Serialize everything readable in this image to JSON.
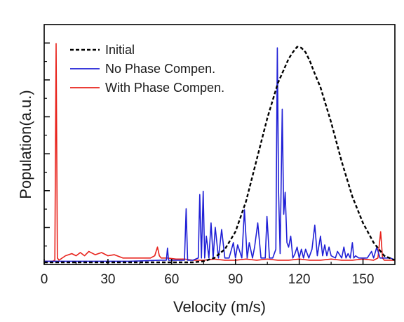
{
  "chart_data": {
    "type": "line",
    "xlabel": "Velocity (m/s)",
    "ylabel": "Population(a.u.)",
    "xlim": [
      0,
      165
    ],
    "ylim": [
      0,
      1.0
    ],
    "xticks": [
      0,
      30,
      60,
      90,
      120,
      150
    ],
    "y_tick_labels_shown": false,
    "legend_position": "top-left",
    "grid": false,
    "series": [
      {
        "name": "Initial",
        "style": "dashed",
        "color": "#000000",
        "x": [
          0,
          70,
          75,
          80,
          85,
          90,
          95,
          100,
          105,
          110,
          115,
          117,
          119,
          121,
          123,
          125,
          127,
          130,
          135,
          140,
          145,
          150,
          155,
          160,
          165
        ],
        "y": [
          0,
          0,
          0.005,
          0.02,
          0.06,
          0.14,
          0.28,
          0.47,
          0.66,
          0.82,
          0.93,
          0.96,
          0.985,
          0.98,
          0.96,
          0.92,
          0.87,
          0.8,
          0.64,
          0.46,
          0.3,
          0.18,
          0.09,
          0.03,
          0.01
        ]
      },
      {
        "name": "No Phase Compen.",
        "style": "solid",
        "color": "#1f1fd6",
        "x": [
          0,
          40,
          55,
          57.5,
          58,
          58.5,
          62,
          66,
          66.8,
          67.5,
          70,
          72.5,
          73.2,
          74,
          74.8,
          75.5,
          76.3,
          77.5,
          78.5,
          79.5,
          80.5,
          82,
          83.5,
          85,
          87,
          89,
          90,
          91,
          93,
          94.2,
          95.5,
          96.5,
          98,
          99,
          100.5,
          102,
          104,
          104.8,
          106,
          107.5,
          109,
          109.7,
          110.3,
          111,
          112,
          112.7,
          113.4,
          114.2,
          115,
          116,
          117,
          118,
          119,
          120,
          121,
          122,
          123,
          124.5,
          126,
          127.3,
          128.5,
          130,
          131,
          132,
          133,
          134,
          135,
          137,
          138,
          140,
          141,
          142,
          143,
          144,
          145,
          145.7,
          146.5,
          148,
          150,
          152,
          154,
          155,
          156.5,
          158,
          160,
          162,
          163,
          165
        ],
        "y": [
          0.005,
          0.005,
          0.01,
          0.01,
          0.065,
          0.01,
          0.01,
          0.01,
          0.245,
          0.01,
          0.01,
          0.02,
          0.31,
          0.02,
          0.325,
          0.02,
          0.12,
          0.02,
          0.18,
          0.02,
          0.16,
          0.02,
          0.15,
          0.02,
          0.02,
          0.09,
          0.02,
          0.08,
          0.02,
          0.24,
          0.02,
          0.09,
          0.02,
          0.07,
          0.18,
          0.02,
          0.02,
          0.21,
          0.02,
          0.02,
          0.06,
          0.98,
          0.32,
          0.04,
          0.7,
          0.22,
          0.32,
          0.09,
          0.07,
          0.12,
          0.02,
          0.04,
          0.07,
          0.02,
          0.06,
          0.02,
          0.06,
          0.02,
          0.06,
          0.17,
          0.03,
          0.12,
          0.03,
          0.08,
          0.03,
          0.07,
          0.03,
          0.02,
          0.05,
          0.02,
          0.07,
          0.02,
          0.04,
          0.02,
          0.09,
          0.02,
          0.03,
          0.02,
          0.02,
          0.02,
          0.05,
          0.02,
          0.07,
          0.02,
          0.02,
          0.02,
          0.02,
          0.01
        ]
      },
      {
        "name": "With Phase Compen.",
        "style": "solid",
        "color": "#e8221b",
        "x": [
          0,
          4,
          5,
          5.6,
          6.2,
          7,
          10,
          13,
          15,
          17,
          19,
          21,
          24,
          27,
          30,
          33,
          37,
          42,
          47,
          50,
          52,
          53.3,
          54.2,
          55,
          58,
          62,
          66,
          70,
          75,
          80,
          85,
          90,
          95,
          100,
          105,
          110,
          115,
          120,
          125,
          130,
          135,
          140,
          145,
          150,
          155,
          157,
          158.3,
          159.2,
          160,
          162,
          165
        ],
        "y": [
          0.005,
          0.005,
          0.01,
          1.0,
          0.02,
          0.01,
          0.03,
          0.04,
          0.03,
          0.045,
          0.03,
          0.05,
          0.035,
          0.045,
          0.03,
          0.035,
          0.02,
          0.02,
          0.02,
          0.02,
          0.03,
          0.07,
          0.03,
          0.02,
          0.02,
          0.015,
          0.015,
          0.01,
          0.01,
          0.015,
          0.01,
          0.01,
          0.015,
          0.01,
          0.015,
          0.01,
          0.01,
          0.015,
          0.01,
          0.01,
          0.015,
          0.01,
          0.01,
          0.015,
          0.01,
          0.02,
          0.14,
          0.02,
          0.01,
          0.01,
          0.01
        ]
      }
    ]
  }
}
